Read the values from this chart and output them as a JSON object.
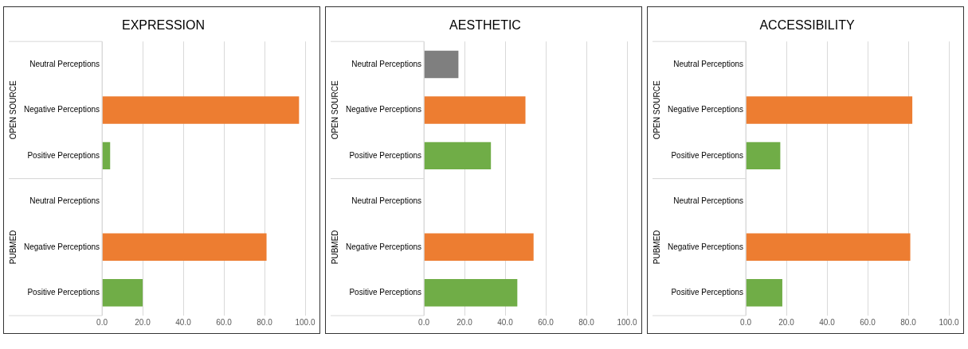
{
  "chart_data": [
    {
      "type": "bar",
      "orientation": "horizontal",
      "title": "EXPRESSION",
      "categories": [
        "Neutral Perceptions",
        "Negative Perceptions",
        "Positive Perceptions",
        "Neutral Perceptions",
        "Negative Perceptions",
        "Positive Perceptions"
      ],
      "values": [
        null,
        97,
        4,
        null,
        81,
        20
      ],
      "colors": [
        "#7f7f7f",
        "#ed7d31",
        "#70ad47",
        "#7f7f7f",
        "#ed7d31",
        "#70ad47"
      ],
      "xlim": [
        0,
        100
      ],
      "xticks": [
        {
          "value": 0,
          "label": "0.0"
        },
        {
          "value": 20,
          "label": "20.0"
        },
        {
          "value": 40,
          "label": "40.0"
        },
        {
          "value": 60,
          "label": "60.0"
        },
        {
          "value": 80,
          "label": "80.0"
        },
        {
          "value": 100,
          "label": "100.0"
        }
      ],
      "grid": "x",
      "legend": false,
      "annotations": [
        "OPEN SOURCE",
        "PUBMED"
      ]
    },
    {
      "type": "bar",
      "orientation": "horizontal",
      "title": "AESTHETIC",
      "categories": [
        "Neutral Perceptions",
        "Negative Perceptions",
        "Positive Perceptions",
        "Neutral Perceptions",
        "Negative Perceptions",
        "Positive Perceptions"
      ],
      "values": [
        17,
        50,
        33,
        null,
        54,
        46
      ],
      "colors": [
        "#7f7f7f",
        "#ed7d31",
        "#70ad47",
        "#7f7f7f",
        "#ed7d31",
        "#70ad47"
      ],
      "xlim": [
        0,
        100
      ],
      "xticks": [
        {
          "value": 0,
          "label": "0.0"
        },
        {
          "value": 20,
          "label": "20.0"
        },
        {
          "value": 40,
          "label": "40.0"
        },
        {
          "value": 60,
          "label": "60.0"
        },
        {
          "value": 80,
          "label": "80.0"
        },
        {
          "value": 100,
          "label": "100.0"
        }
      ],
      "grid": "x",
      "legend": false,
      "annotations": [
        "OPEN SOURCE",
        "PUBMED"
      ]
    },
    {
      "type": "bar",
      "orientation": "horizontal",
      "title": "ACCESSIBILITY",
      "categories": [
        "Neutral Perceptions",
        "Negative Perceptions",
        "Positive Perceptions",
        "Neutral Perceptions",
        "Negative Perceptions",
        "Positive Perceptions"
      ],
      "values": [
        null,
        82,
        17,
        null,
        81,
        18
      ],
      "colors": [
        "#7f7f7f",
        "#ed7d31",
        "#70ad47",
        "#7f7f7f",
        "#ed7d31",
        "#70ad47"
      ],
      "xlim": [
        0,
        100
      ],
      "xticks": [
        {
          "value": 0,
          "label": "0.0"
        },
        {
          "value": 20,
          "label": "20.0"
        },
        {
          "value": 40,
          "label": "40.0"
        },
        {
          "value": 60,
          "label": "60.0"
        },
        {
          "value": 80,
          "label": "80.0"
        },
        {
          "value": 100,
          "label": "100.0"
        }
      ],
      "grid": "x",
      "legend": false,
      "annotations": [
        "OPEN SOURCE",
        "PUBMED"
      ]
    }
  ]
}
